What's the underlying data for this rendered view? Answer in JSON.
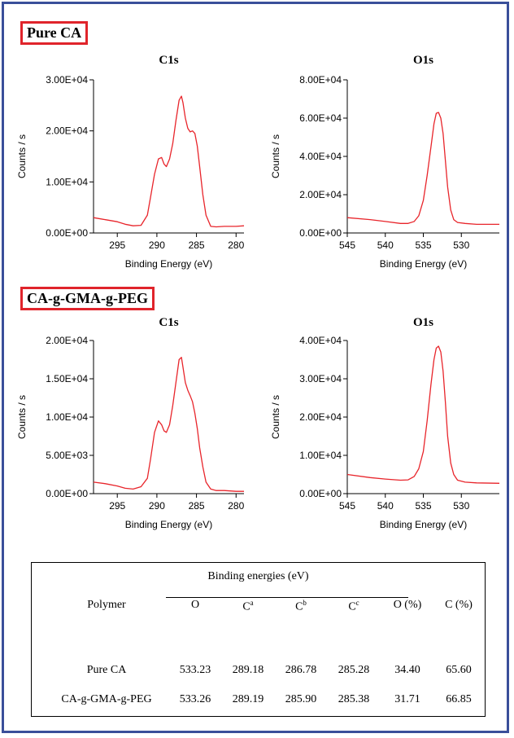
{
  "colors": {
    "frame": "#3a4f9a",
    "title_box": "#e0242b",
    "trace": "#e8252b",
    "axis": "#000000"
  },
  "sections": [
    {
      "title": "Pure CA"
    },
    {
      "title": "CA-g-GMA-g-PEG"
    }
  ],
  "axis_labels": {
    "x": "Binding Energy (eV)",
    "y": "Counts / s"
  },
  "chart_data": [
    {
      "type": "line",
      "section": "Pure CA",
      "title": "C1s",
      "xlabel": "Binding Energy (eV)",
      "ylabel": "Counts / s",
      "xlim": [
        298,
        279
      ],
      "ylim": [
        0,
        30000
      ],
      "x_ticks": [
        295,
        290,
        285,
        280
      ],
      "y_ticks": [
        "0.00E+00",
        "1.00E+04",
        "2.00E+04",
        "3.00E+04"
      ],
      "y_tick_values": [
        0,
        10000,
        20000,
        30000
      ],
      "series": [
        {
          "x": [
            298,
            296.5,
            295,
            294,
            293,
            292,
            291.2,
            290.8,
            290.3,
            289.8,
            289.4,
            289.1,
            288.8,
            288.4,
            288.0,
            287.6,
            287.2,
            286.9,
            286.7,
            286.4,
            286.1,
            285.8,
            285.5,
            285.2,
            284.9,
            284.6,
            284.2,
            283.8,
            283.2,
            282.5,
            281.5,
            280,
            279
          ],
          "y": [
            3000,
            2600,
            2200,
            1700,
            1400,
            1500,
            3500,
            7000,
            11500,
            14500,
            14800,
            13500,
            13000,
            14500,
            17500,
            22000,
            26000,
            26800,
            25500,
            22500,
            20500,
            19800,
            20000,
            19500,
            17000,
            13000,
            7500,
            3500,
            1300,
            1200,
            1300,
            1300,
            1400
          ]
        }
      ]
    },
    {
      "type": "line",
      "section": "Pure CA",
      "title": "O1s",
      "xlabel": "Binding Energy (eV)",
      "ylabel": "Counts / s",
      "xlim": [
        545,
        525
      ],
      "ylim": [
        0,
        80000
      ],
      "x_ticks": [
        545,
        540,
        535,
        530
      ],
      "y_ticks": [
        "0.00E+00",
        "2.00E+04",
        "4.00E+04",
        "6.00E+04",
        "8.00E+04"
      ],
      "y_tick_values": [
        0,
        20000,
        40000,
        60000,
        80000
      ],
      "series": [
        {
          "x": [
            545,
            542,
            540,
            538,
            537,
            536.2,
            535.6,
            535.0,
            534.5,
            534.0,
            533.6,
            533.3,
            533.0,
            532.7,
            532.4,
            532.1,
            531.8,
            531.4,
            531.0,
            530.5,
            529.5,
            528,
            525
          ],
          "y": [
            8000,
            7000,
            6000,
            5000,
            5000,
            6000,
            9000,
            17000,
            30000,
            45000,
            57000,
            62500,
            63000,
            60000,
            52000,
            38000,
            24000,
            12000,
            7000,
            5500,
            5000,
            4500,
            4500
          ]
        }
      ]
    },
    {
      "type": "line",
      "section": "CA-g-GMA-g-PEG",
      "title": "C1s",
      "xlabel": "Binding Energy (eV)",
      "ylabel": "Counts / s",
      "xlim": [
        298,
        279
      ],
      "ylim": [
        0,
        20000
      ],
      "x_ticks": [
        295,
        290,
        285,
        280
      ],
      "y_ticks": [
        "0.00E+00",
        "5.00E+03",
        "1.00E+04",
        "1.50E+04",
        "2.00E+04"
      ],
      "y_tick_values": [
        0,
        5000,
        10000,
        15000,
        20000
      ],
      "series": [
        {
          "x": [
            298,
            296.5,
            295,
            294,
            293,
            292,
            291.2,
            290.8,
            290.3,
            289.8,
            289.4,
            289.1,
            288.8,
            288.4,
            288.0,
            287.6,
            287.2,
            286.9,
            286.7,
            286.4,
            286.1,
            285.8,
            285.5,
            285.2,
            284.9,
            284.6,
            284.2,
            283.8,
            283.2,
            282.5,
            281.5,
            280,
            279
          ],
          "y": [
            1500,
            1300,
            1000,
            700,
            600,
            900,
            2000,
            4500,
            8000,
            9500,
            9000,
            8200,
            8000,
            9000,
            11500,
            14500,
            17500,
            17800,
            16500,
            14500,
            13500,
            12800,
            12000,
            10500,
            8500,
            6000,
            3500,
            1500,
            600,
            400,
            400,
            300,
            300
          ]
        }
      ]
    },
    {
      "type": "line",
      "section": "CA-g-GMA-g-PEG",
      "title": "O1s",
      "xlabel": "Binding Energy (eV)",
      "ylabel": "Counts / s",
      "xlim": [
        545,
        525
      ],
      "ylim": [
        0,
        40000
      ],
      "x_ticks": [
        545,
        540,
        535,
        530
      ],
      "y_ticks": [
        "0.00E+00",
        "1.00E+04",
        "2.00E+04",
        "3.00E+04",
        "4.00E+04"
      ],
      "y_tick_values": [
        0,
        10000,
        20000,
        30000,
        40000
      ],
      "series": [
        {
          "x": [
            545,
            542,
            540,
            538,
            537,
            536.2,
            535.6,
            535.0,
            534.5,
            534.0,
            533.6,
            533.3,
            533.0,
            532.7,
            532.4,
            532.1,
            531.8,
            531.4,
            531.0,
            530.5,
            529.5,
            528,
            525
          ],
          "y": [
            5000,
            4200,
            3800,
            3500,
            3600,
            4500,
            6500,
            11000,
            19000,
            28500,
            35000,
            38000,
            38500,
            37000,
            32000,
            24000,
            15000,
            8000,
            5000,
            3500,
            3000,
            2800,
            2700
          ]
        }
      ]
    },
    {
      "type": "table",
      "group_header": "Binding energies (eV)",
      "columns": [
        {
          "text": "Polymer",
          "sup": ""
        },
        {
          "text": "O",
          "sup": ""
        },
        {
          "text": "C",
          "sup": "a"
        },
        {
          "text": "C",
          "sup": "b"
        },
        {
          "text": "C",
          "sup": "c"
        },
        {
          "text": "O (%)",
          "sup": ""
        },
        {
          "text": "C (%)",
          "sup": ""
        }
      ],
      "rows": [
        [
          "Pure CA",
          "533.23",
          "289.18",
          "286.78",
          "285.28",
          "34.40",
          "65.60"
        ],
        [
          "CA-g-GMA-g-PEG",
          "533.26",
          "289.19",
          "285.90",
          "285.38",
          "31.71",
          "66.85"
        ]
      ]
    }
  ]
}
